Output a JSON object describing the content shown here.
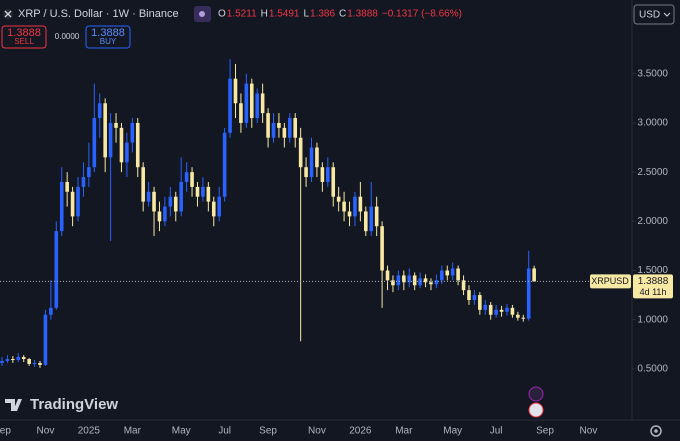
{
  "chart_data": {
    "type": "candlestick",
    "title": "XRP / U.S. Dollar · 1W · Binance",
    "change_label": "−0.1317 (−8.66%)",
    "symbol": "XRPUSD",
    "countdown": "4d 11h",
    "currency": "USD",
    "sell_label": "SELL",
    "buy_label": "BUY",
    "spread_label": "0.0000",
    "ohlc_letters": [
      "O",
      "H",
      "L",
      "C"
    ],
    "brand": "TradingView",
    "up_color": "#2962ff",
    "down_color": "#f7e8a3",
    "grid": false,
    "categories": [
      "Sep",
      null,
      null,
      null,
      null,
      null,
      null,
      null,
      "Nov",
      null,
      null,
      null,
      null,
      null,
      null,
      null,
      "2025",
      null,
      null,
      null,
      null,
      null,
      null,
      null,
      "Mar",
      null,
      null,
      null,
      null,
      null,
      null,
      null,
      null,
      "May",
      null,
      null,
      null,
      null,
      null,
      null,
      null,
      "Jul",
      null,
      null,
      null,
      null,
      null,
      null,
      null,
      "Sep",
      null,
      null,
      null,
      null,
      null,
      null,
      null,
      null,
      "Nov",
      null,
      null,
      null,
      null,
      null,
      null,
      null,
      "2026",
      null,
      null,
      null,
      null,
      null,
      null,
      null,
      "Mar",
      null,
      null,
      null,
      null,
      null,
      null,
      null,
      null,
      "May",
      null,
      null,
      null,
      null,
      null,
      null,
      null,
      "Jul",
      null,
      null,
      null,
      null,
      null,
      null,
      null,
      null,
      "Sep",
      null,
      null,
      null,
      null,
      null,
      null,
      null,
      "Nov",
      null,
      null,
      null,
      null,
      null,
      null,
      null
    ],
    "open": [
      0.56,
      0.58,
      0.6,
      0.59,
      0.62,
      0.6,
      0.55,
      0.56,
      0.54,
      1.05,
      1.12,
      1.9,
      2.4,
      2.3,
      2.05,
      2.35,
      2.45,
      2.55,
      3.05,
      3.2,
      2.65,
      3.0,
      2.95,
      2.6,
      2.8,
      3.0,
      2.55,
      2.2,
      2.3,
      2.1,
      2.0,
      2.15,
      2.25,
      2.1,
      2.4,
      2.5,
      2.35,
      2.25,
      2.35,
      2.2,
      2.05,
      2.25,
      2.9,
      3.45,
      3.2,
      3.0,
      3.4,
      3.05,
      3.3,
      3.1,
      2.85,
      3.0,
      2.95,
      2.85,
      3.05,
      2.85,
      2.55,
      2.45,
      2.75,
      2.55,
      2.4,
      2.55,
      2.25,
      2.2,
      2.1,
      2.05,
      2.25,
      2.1,
      1.9,
      2.15,
      1.95,
      1.5,
      1.4,
      1.35,
      1.45,
      1.38,
      1.45,
      1.35,
      1.42,
      1.38,
      1.36,
      1.4,
      1.5,
      1.45,
      1.52,
      1.4,
      1.3,
      1.2,
      1.25,
      1.1,
      1.15,
      1.05,
      1.1,
      1.08,
      1.12,
      1.05,
      1.02,
      1.01,
      1.5211,
      null,
      null,
      null,
      null,
      null,
      null,
      null,
      null,
      null,
      null,
      null,
      null,
      null,
      null,
      null,
      null,
      null
    ],
    "high": [
      0.62,
      0.64,
      0.63,
      0.66,
      0.64,
      0.61,
      0.59,
      0.58,
      1.1,
      1.4,
      2.0,
      2.55,
      2.5,
      2.35,
      2.45,
      2.6,
      2.8,
      3.4,
      3.3,
      3.25,
      3.1,
      3.1,
      3.0,
      2.9,
      3.05,
      3.05,
      2.6,
      2.4,
      2.35,
      2.2,
      2.25,
      2.35,
      2.3,
      2.65,
      2.6,
      2.55,
      2.4,
      2.45,
      2.4,
      2.25,
      2.35,
      2.95,
      3.65,
      3.6,
      3.3,
      3.5,
      3.45,
      3.35,
      3.4,
      3.15,
      3.1,
      3.1,
      3.0,
      3.1,
      3.1,
      2.95,
      2.65,
      2.85,
      2.8,
      2.6,
      2.65,
      2.6,
      2.35,
      2.3,
      2.2,
      2.3,
      2.4,
      2.15,
      2.4,
      2.25,
      2.0,
      1.55,
      1.45,
      1.5,
      1.5,
      1.52,
      1.48,
      1.48,
      1.46,
      1.42,
      1.46,
      1.55,
      1.55,
      1.58,
      1.55,
      1.45,
      1.35,
      1.3,
      1.28,
      1.2,
      1.18,
      1.15,
      1.14,
      1.16,
      1.15,
      1.08,
      1.05,
      1.7,
      1.5491,
      null,
      null,
      null,
      null,
      null,
      null,
      null,
      null,
      null,
      null,
      null,
      null,
      null,
      null,
      null,
      null,
      null
    ],
    "low": [
      0.53,
      0.56,
      0.56,
      0.57,
      0.57,
      0.53,
      0.52,
      0.51,
      0.53,
      1.0,
      1.1,
      1.85,
      2.15,
      1.95,
      2.0,
      2.25,
      2.35,
      2.5,
      2.85,
      2.5,
      1.8,
      2.8,
      2.5,
      2.45,
      2.7,
      2.45,
      2.1,
      2.15,
      1.85,
      1.9,
      1.95,
      2.05,
      2.0,
      2.05,
      2.3,
      2.25,
      2.15,
      2.2,
      2.1,
      1.95,
      2.0,
      2.2,
      2.85,
      3.05,
      2.9,
      2.95,
      2.95,
      3.0,
      3.0,
      2.75,
      2.8,
      2.85,
      2.75,
      2.8,
      2.75,
      0.78,
      2.35,
      2.4,
      2.45,
      2.3,
      2.35,
      2.15,
      2.1,
      2.0,
      1.95,
      1.95,
      2.0,
      1.85,
      1.85,
      1.85,
      1.12,
      1.3,
      1.28,
      1.3,
      1.3,
      1.33,
      1.3,
      1.32,
      1.33,
      1.3,
      1.32,
      1.36,
      1.4,
      1.4,
      1.35,
      1.25,
      1.15,
      1.15,
      1.05,
      1.05,
      1.0,
      1.02,
      1.03,
      1.04,
      1.02,
      0.99,
      0.98,
      0.99,
      1.386,
      null,
      null,
      null,
      null,
      null,
      null,
      null,
      null,
      null,
      null,
      null,
      null,
      null,
      null,
      null,
      null,
      null
    ],
    "close": [
      0.58,
      0.6,
      0.59,
      0.62,
      0.6,
      0.55,
      0.56,
      0.54,
      1.05,
      1.12,
      1.9,
      2.4,
      2.3,
      2.05,
      2.35,
      2.45,
      2.55,
      3.05,
      3.2,
      2.65,
      3.0,
      2.95,
      2.6,
      2.8,
      3.0,
      2.55,
      2.2,
      2.3,
      2.1,
      2.0,
      2.15,
      2.25,
      2.1,
      2.4,
      2.5,
      2.35,
      2.25,
      2.35,
      2.2,
      2.05,
      2.25,
      2.9,
      3.45,
      3.2,
      3.0,
      3.4,
      3.05,
      3.3,
      3.1,
      2.85,
      3.0,
      2.95,
      2.85,
      3.05,
      2.85,
      2.55,
      2.45,
      2.75,
      2.55,
      2.4,
      2.55,
      2.25,
      2.2,
      2.1,
      2.05,
      2.25,
      2.1,
      1.9,
      2.15,
      1.95,
      1.5,
      1.4,
      1.35,
      1.45,
      1.38,
      1.45,
      1.35,
      1.42,
      1.38,
      1.36,
      1.4,
      1.5,
      1.45,
      1.52,
      1.4,
      1.3,
      1.2,
      1.25,
      1.1,
      1.15,
      1.05,
      1.1,
      1.08,
      1.12,
      1.05,
      1.02,
      1.01,
      1.52,
      1.3888,
      null,
      null,
      null,
      null,
      null,
      null,
      null,
      null,
      null,
      null,
      null,
      null,
      null,
      null,
      null,
      null,
      null
    ],
    "ylim": [
      -0.02,
      4.25
    ],
    "yticks": [
      {
        "value": 0.5,
        "label": "0.5000"
      },
      {
        "value": 1,
        "label": "1.0000"
      },
      {
        "value": 1.5,
        "label": "1.5000"
      },
      {
        "value": 2,
        "label": "2.0000"
      },
      {
        "value": 2.5,
        "label": "2.5000"
      },
      {
        "value": 3,
        "label": "3.0000"
      },
      {
        "value": 3.5,
        "label": "3.5000"
      }
    ]
  }
}
